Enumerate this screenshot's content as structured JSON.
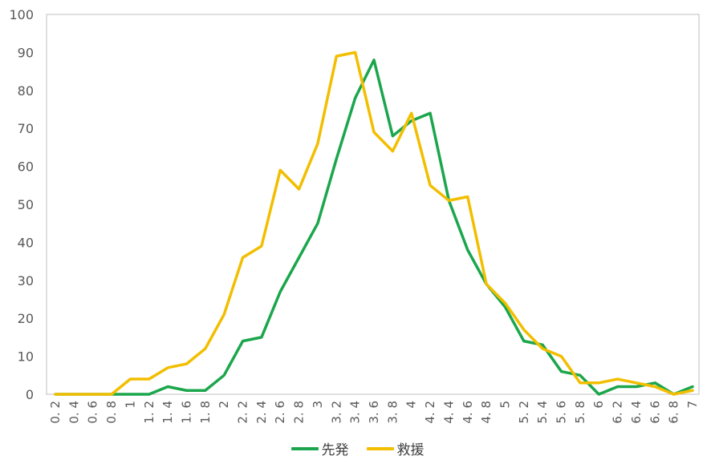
{
  "chart_data": {
    "type": "line",
    "title": "",
    "xlabel": "",
    "ylabel": "",
    "x": [
      "0.2",
      "0.4",
      "0.6",
      "0.8",
      "1",
      "1.2",
      "1.4",
      "1.6",
      "1.8",
      "2",
      "2.2",
      "2.4",
      "2.6",
      "2.8",
      "3",
      "3.2",
      "3.4",
      "3.6",
      "3.8",
      "4",
      "4.2",
      "4.4",
      "4.6",
      "4.8",
      "5",
      "5.2",
      "5.4",
      "5.6",
      "5.8",
      "6",
      "6.2",
      "6.4",
      "6.6",
      "6.8",
      "7"
    ],
    "x_tick_labels": [
      "0. 2",
      "0. 4",
      "0. 6",
      "0. 8",
      "1",
      "1. 2",
      "1. 4",
      "1. 6",
      "1. 8",
      "2",
      "2. 2",
      "2. 4",
      "2. 6",
      "2. 8",
      "3",
      "3. 2",
      "3. 4",
      "3. 6",
      "3. 8",
      "4",
      "4. 2",
      "4. 4",
      "4. 6",
      "4. 8",
      "5",
      "5. 2",
      "5. 4",
      "5. 6",
      "5. 8",
      "6",
      "6. 2",
      "6. 4",
      "6. 6",
      "6. 8",
      "7"
    ],
    "ylim": [
      0,
      100
    ],
    "yticks": [
      0,
      10,
      20,
      30,
      40,
      50,
      60,
      70,
      80,
      90,
      100
    ],
    "grid": false,
    "legend_position": "bottom",
    "series": [
      {
        "name": "先発",
        "color": "#1BA64C",
        "values": [
          0,
          0,
          0,
          0,
          0,
          0,
          2,
          1,
          1,
          5,
          14,
          15,
          27,
          36,
          45,
          62,
          78,
          88,
          68,
          72,
          74,
          51,
          38,
          29,
          23,
          14,
          13,
          6,
          5,
          0,
          2,
          2,
          3,
          0,
          2
        ]
      },
      {
        "name": "救援",
        "color": "#F2BE00",
        "values": [
          0,
          0,
          0,
          0,
          4,
          4,
          7,
          8,
          12,
          21,
          36,
          39,
          59,
          54,
          66,
          89,
          90,
          69,
          64,
          74,
          55,
          51,
          52,
          29,
          24,
          17,
          12,
          10,
          3,
          3,
          4,
          3,
          2,
          0,
          1
        ]
      }
    ]
  }
}
